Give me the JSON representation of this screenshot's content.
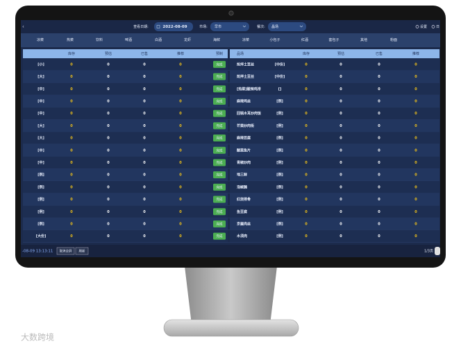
{
  "toolbar": {
    "date_label": "查看日期:",
    "date": "2022-08-09",
    "market_label": "市场:",
    "market": "早市",
    "meal_label": "餐次:",
    "meal": "晶场",
    "settings": "设置",
    "right": "日"
  },
  "categories": [
    "凉菜",
    "热菜",
    "饮料",
    "啤酒",
    "白酒",
    "龙虾",
    "海鲜",
    "凉菜",
    "小包子",
    "红酒",
    "套包子",
    "其他",
    "粉面"
  ],
  "left_table": {
    "columns": [
      "库存",
      "预估",
      "已售",
      "推荐",
      "预制"
    ],
    "rows": [
      {
        "label": "[小]",
        "values": [
          0,
          0,
          0,
          0
        ],
        "action": "完成"
      },
      {
        "label": "[大]",
        "values": [
          0,
          0,
          0,
          0
        ],
        "action": "完成"
      },
      {
        "label": "[中]",
        "values": [
          0,
          0,
          0,
          0
        ],
        "action": "完成"
      },
      {
        "label": "[中]",
        "values": [
          0,
          0,
          0,
          0
        ],
        "action": "完成"
      },
      {
        "label": "[中]",
        "values": [
          0,
          0,
          0,
          0
        ],
        "action": "完成"
      },
      {
        "label": "[大]",
        "values": [
          0,
          0,
          0,
          0
        ],
        "action": "完成"
      },
      {
        "label": "[大]",
        "values": [
          0,
          0,
          0,
          0
        ],
        "action": "完成"
      },
      {
        "label": "[中]",
        "values": [
          0,
          0,
          0,
          0
        ],
        "action": "完成"
      },
      {
        "label": "[中]",
        "values": [
          0,
          0,
          0,
          0
        ],
        "action": "完成"
      },
      {
        "label": "[例]",
        "values": [
          0,
          0,
          0,
          0
        ],
        "action": "完成"
      },
      {
        "label": "[例]",
        "values": [
          0,
          0,
          0,
          0
        ],
        "action": "完成"
      },
      {
        "label": "[例]",
        "values": [
          0,
          0,
          0,
          0
        ],
        "action": "完成"
      },
      {
        "label": "[例]",
        "values": [
          0,
          0,
          0,
          0
        ],
        "action": "完成"
      },
      {
        "label": "[例]",
        "values": [
          0,
          0,
          0,
          0
        ],
        "action": "完成"
      },
      {
        "label": "[大份]",
        "values": [
          0,
          0,
          0,
          0
        ],
        "action": "完成"
      }
    ]
  },
  "right_table": {
    "columns": [
      "品场",
      "库存",
      "预估",
      "已售",
      "推荐"
    ],
    "rows": [
      {
        "name": "炝拌土豆丝",
        "tag": "[中份]",
        "values": [
          0,
          0,
          0,
          0
        ]
      },
      {
        "name": "炝拌土豆丝",
        "tag": "[中份]",
        "values": [
          0,
          0,
          0,
          0
        ]
      },
      {
        "name": "[热菜]酸辣鸡排",
        "tag": "[]",
        "values": [
          0,
          0,
          0,
          0
        ]
      },
      {
        "name": "麻辣鸡丝",
        "tag": "[例]",
        "values": [
          0,
          0,
          0,
          0
        ]
      },
      {
        "name": "回锅木耳炒肉饭",
        "tag": "[例]",
        "values": [
          0,
          0,
          0,
          0
        ]
      },
      {
        "name": "芒菜炒肉街",
        "tag": "[例]",
        "values": [
          0,
          0,
          0,
          0
        ]
      },
      {
        "name": "麻辣豆腐",
        "tag": "[例]",
        "values": [
          0,
          0,
          0,
          0
        ]
      },
      {
        "name": "酸菜鱼片",
        "tag": "[例]",
        "values": [
          0,
          0,
          0,
          0
        ]
      },
      {
        "name": "青椒炒肉",
        "tag": "[例]",
        "values": [
          0,
          0,
          0,
          0
        ]
      },
      {
        "name": "地三鲜",
        "tag": "[例]",
        "values": [
          0,
          0,
          0,
          0
        ]
      },
      {
        "name": "泡椒腩",
        "tag": "[例]",
        "values": [
          0,
          0,
          0,
          0
        ]
      },
      {
        "name": "红烧排骨",
        "tag": "[例]",
        "values": [
          0,
          0,
          0,
          0
        ]
      },
      {
        "name": "鱼豆腐",
        "tag": "[例]",
        "values": [
          0,
          0,
          0,
          0
        ]
      },
      {
        "name": "京酱肉丝",
        "tag": "[例]",
        "values": [
          0,
          0,
          0,
          0
        ]
      },
      {
        "name": "木须肉",
        "tag": "[例]",
        "values": [
          0,
          0,
          0,
          0
        ]
      }
    ]
  },
  "footer": {
    "time": "-08-09 13:13:11",
    "buttons": [
      "取消全屏",
      "刷新"
    ],
    "page": "1/3页"
  },
  "watermark": "大数跨境"
}
